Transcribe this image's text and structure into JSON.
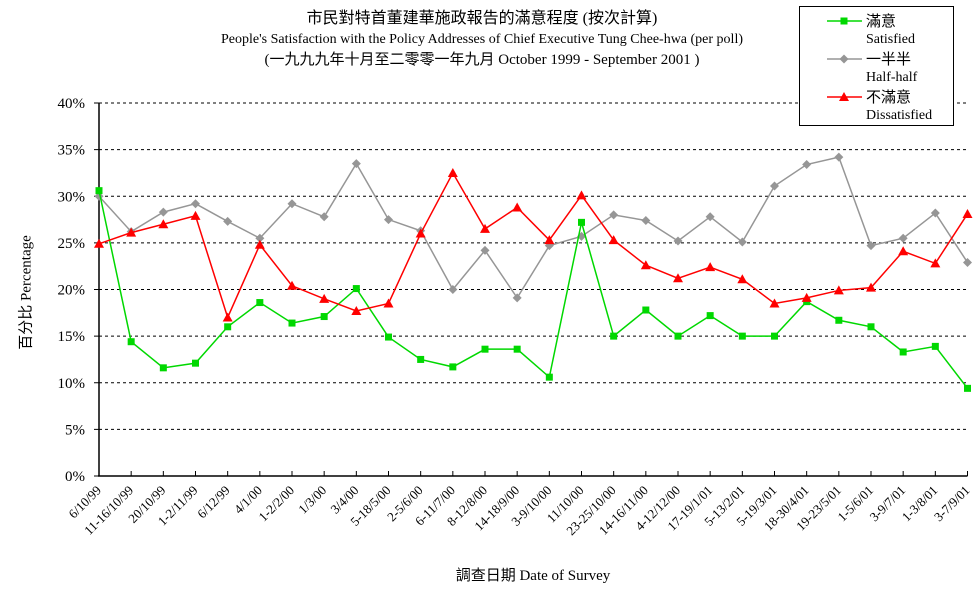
{
  "title": {
    "line1_zh": "市民對特首董建華施政報告的滿意程度 (按次計算)",
    "line2_en": "People's Satisfaction with the Policy Addresses of Chief Executive Tung Chee-hwa (per poll)",
    "line3_range": "(一九九九年十月至二零零一年九月 October 1999 - September 2001 )"
  },
  "chart_data": {
    "type": "line",
    "title": "市民對特首董建華施政報告的滿意程度 (按次計算)",
    "subtitle": "People's Satisfaction with the Policy Addresses of Chief Executive Tung Chee-hwa (per poll)",
    "date_range": "(一九九九年十月至二零零一年九月 October 1999 - September 2001 )",
    "xlabel": "調查日期 Date of Survey",
    "ylabel": "百分比 Percentage",
    "ylim": [
      0,
      40
    ],
    "ytick_step": 5,
    "ytick_labels": [
      "0%",
      "5%",
      "10%",
      "15%",
      "20%",
      "25%",
      "30%",
      "35%",
      "40%"
    ],
    "grid": "horizontal-dashed",
    "legend_position": "top-right",
    "categories": [
      "6/10/99",
      "11-16/10/99",
      "20/10/99",
      "1-2/11/99",
      "6/12/99",
      "4/1/00",
      "1-2/2/00",
      "1/3/00",
      "3/4/00",
      "5-18/5/00",
      "2-5/6/00",
      "6-11/7/00",
      "8-12/8/00",
      "14-18/9/00",
      "3-9/10/00",
      "11/10/00",
      "23-25/10/00",
      "14-16/11/00",
      "4-12/12/00",
      "17-19/1/01",
      "5-13/2/01",
      "5-19/3/01",
      "18-30/4/01",
      "19-23/5/01",
      "1-5/6/01",
      "3-9/7/01",
      "1-3/8/01",
      "3-7/9/01"
    ],
    "series": [
      {
        "id": "satisfied",
        "name_zh": "滿意",
        "name_en": "Satisfied",
        "color": "#00D800",
        "marker": "square",
        "values": [
          30.6,
          14.4,
          11.6,
          12.1,
          16.0,
          18.6,
          16.4,
          17.1,
          20.1,
          14.9,
          12.5,
          11.7,
          13.6,
          13.6,
          10.6,
          27.2,
          15.0,
          17.8,
          15.0,
          17.2,
          15.0,
          15.0,
          18.7,
          16.7,
          16.0,
          13.3,
          13.9,
          9.4
        ]
      },
      {
        "id": "half-half",
        "name_zh": "一半半",
        "name_en": "Half-half",
        "color": "#969696",
        "marker": "diamond",
        "values": [
          30.0,
          26.2,
          28.3,
          29.2,
          27.3,
          25.5,
          29.2,
          27.8,
          33.5,
          27.5,
          26.3,
          20.0,
          24.2,
          19.1,
          24.7,
          25.7,
          28.0,
          27.4,
          25.2,
          27.8,
          25.1,
          31.1,
          33.4,
          34.2,
          24.7,
          25.5,
          28.2,
          22.9
        ]
      },
      {
        "id": "dissatisfied",
        "name_zh": "不滿意",
        "name_en": "Dissatisfied",
        "color": "#FF0000",
        "marker": "triangle",
        "values": [
          24.9,
          26.1,
          27.0,
          27.9,
          17.0,
          24.8,
          20.4,
          19.0,
          17.7,
          18.5,
          26.0,
          32.5,
          26.5,
          28.8,
          25.3,
          30.1,
          25.3,
          22.6,
          21.2,
          22.4,
          21.1,
          18.5,
          19.1,
          19.9,
          20.2,
          24.1,
          22.8,
          28.1
        ]
      }
    ]
  }
}
